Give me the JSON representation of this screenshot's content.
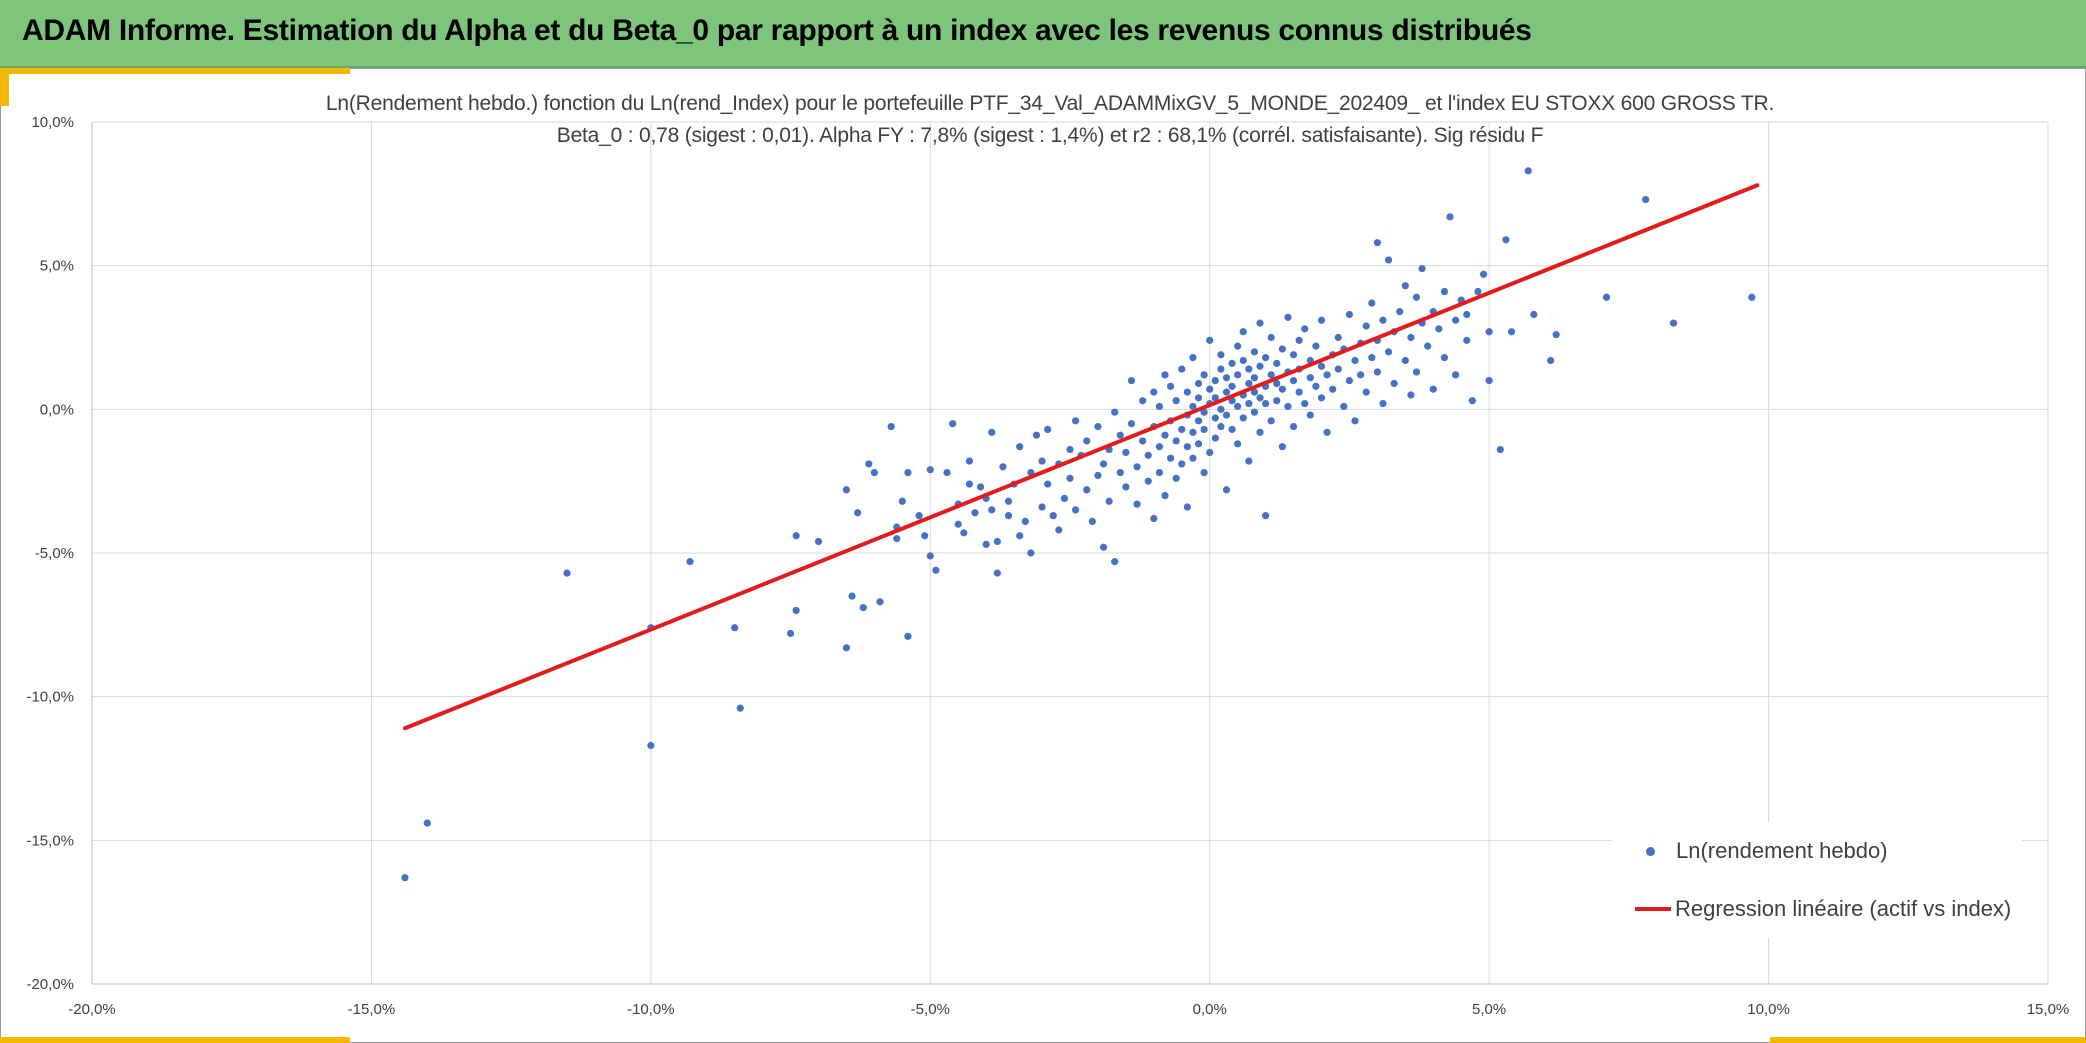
{
  "header": {
    "title": "ADAM Informe. Estimation du Alpha et du Beta_0 par rapport à un index avec les revenus connus distribués"
  },
  "colors": {
    "header_bg": "#7dc57b",
    "accent": "#f2b900",
    "points": "#4472c4",
    "regression": "#e31b1b",
    "grid": "#d9d9d9"
  },
  "chart_data": {
    "type": "scatter",
    "title_line1": "Ln(Rendement hebdo.) fonction du Ln(rend_Index) pour le portefeuille PTF_34_Val_ADAMMixGV_5_MONDE_202409_ et l'index EU STOXX 600 GROSS TR.",
    "title_line2": "Beta_0 : 0,78 (sigest : 0,01). Alpha FY : 7,8% (sigest : 1,4%) et r2 : 68,1% (corrél. satisfaisante). Sig résidu F",
    "xlabel": "",
    "ylabel": "",
    "xlim": [
      -0.2,
      0.15
    ],
    "ylim": [
      -0.2,
      0.1
    ],
    "x_ticks": [
      -0.2,
      -0.15,
      -0.1,
      -0.05,
      0.0,
      0.05,
      0.1,
      0.15
    ],
    "y_ticks": [
      -0.2,
      -0.15,
      -0.1,
      -0.05,
      0.0,
      0.05,
      0.1
    ],
    "x_tick_labels": [
      "-20,0%",
      "-15,0%",
      "-10,0%",
      "-5,0%",
      "0,0%",
      "5,0%",
      "10,0%",
      "15,0%"
    ],
    "y_tick_labels": [
      "-20,0%",
      "-15,0%",
      "-10,0%",
      "-5,0%",
      "0,0%",
      "5,0%",
      "10,0%"
    ],
    "grid": true,
    "legend_position": "bottom-right",
    "series": [
      {
        "name": "Ln(rendement hebdo)",
        "kind": "scatter",
        "points": [
          [
            -0.144,
            -0.163
          ],
          [
            -0.14,
            -0.144
          ],
          [
            -0.115,
            -0.057
          ],
          [
            -0.1,
            -0.117
          ],
          [
            -0.1,
            -0.076
          ],
          [
            -0.093,
            -0.053
          ],
          [
            -0.085,
            -0.076
          ],
          [
            -0.084,
            -0.104
          ],
          [
            -0.075,
            -0.078
          ],
          [
            -0.074,
            -0.07
          ],
          [
            -0.074,
            -0.044
          ],
          [
            -0.07,
            -0.046
          ],
          [
            -0.065,
            -0.028
          ],
          [
            -0.065,
            -0.083
          ],
          [
            -0.064,
            -0.065
          ],
          [
            -0.063,
            -0.036
          ],
          [
            -0.062,
            -0.069
          ],
          [
            -0.061,
            -0.019
          ],
          [
            -0.06,
            -0.022
          ],
          [
            -0.059,
            -0.067
          ],
          [
            -0.057,
            -0.006
          ],
          [
            -0.056,
            -0.045
          ],
          [
            -0.056,
            -0.041
          ],
          [
            -0.055,
            -0.032
          ],
          [
            -0.054,
            -0.022
          ],
          [
            -0.054,
            -0.079
          ],
          [
            -0.052,
            -0.037
          ],
          [
            -0.051,
            -0.044
          ],
          [
            -0.05,
            -0.021
          ],
          [
            -0.05,
            -0.051
          ],
          [
            -0.049,
            -0.056
          ],
          [
            -0.047,
            -0.022
          ],
          [
            -0.046,
            -0.005
          ],
          [
            -0.045,
            -0.04
          ],
          [
            -0.045,
            -0.033
          ],
          [
            -0.044,
            -0.043
          ],
          [
            -0.043,
            -0.018
          ],
          [
            -0.043,
            -0.026
          ],
          [
            -0.042,
            -0.036
          ],
          [
            -0.041,
            -0.027
          ],
          [
            -0.04,
            -0.031
          ],
          [
            -0.04,
            -0.047
          ],
          [
            -0.039,
            -0.008
          ],
          [
            -0.039,
            -0.035
          ],
          [
            -0.038,
            -0.057
          ],
          [
            -0.038,
            -0.046
          ],
          [
            -0.037,
            -0.02
          ],
          [
            -0.036,
            -0.037
          ],
          [
            -0.036,
            -0.032
          ],
          [
            -0.035,
            -0.026
          ],
          [
            -0.034,
            -0.044
          ],
          [
            -0.034,
            -0.013
          ],
          [
            -0.033,
            -0.039
          ],
          [
            -0.032,
            -0.022
          ],
          [
            -0.032,
            -0.05
          ],
          [
            -0.031,
            -0.009
          ],
          [
            -0.03,
            -0.034
          ],
          [
            -0.03,
            -0.018
          ],
          [
            -0.029,
            -0.026
          ],
          [
            -0.029,
            -0.007
          ],
          [
            -0.028,
            -0.037
          ],
          [
            -0.027,
            -0.019
          ],
          [
            -0.027,
            -0.042
          ],
          [
            -0.026,
            -0.031
          ],
          [
            -0.025,
            -0.014
          ],
          [
            -0.025,
            -0.024
          ],
          [
            -0.024,
            -0.004
          ],
          [
            -0.024,
            -0.035
          ],
          [
            -0.023,
            -0.016
          ],
          [
            -0.022,
            -0.028
          ],
          [
            -0.022,
            -0.011
          ],
          [
            -0.021,
            -0.039
          ],
          [
            -0.02,
            -0.023
          ],
          [
            -0.02,
            -0.006
          ],
          [
            -0.019,
            -0.048
          ],
          [
            -0.019,
            -0.019
          ],
          [
            -0.018,
            -0.014
          ],
          [
            -0.018,
            -0.032
          ],
          [
            -0.017,
            -0.001
          ],
          [
            -0.017,
            -0.053
          ],
          [
            -0.016,
            -0.022
          ],
          [
            -0.016,
            -0.009
          ],
          [
            -0.015,
            -0.027
          ],
          [
            -0.015,
            -0.015
          ],
          [
            -0.014,
            -0.005
          ],
          [
            -0.014,
            0.01
          ],
          [
            -0.013,
            -0.02
          ],
          [
            -0.013,
            -0.033
          ],
          [
            -0.012,
            -0.011
          ],
          [
            -0.012,
            0.003
          ],
          [
            -0.011,
            -0.025
          ],
          [
            -0.011,
            -0.016
          ],
          [
            -0.01,
            -0.006
          ],
          [
            -0.01,
            0.006
          ],
          [
            -0.01,
            -0.038
          ],
          [
            -0.009,
            -0.013
          ],
          [
            -0.009,
            -0.022
          ],
          [
            -0.009,
            0.001
          ],
          [
            -0.008,
            -0.009
          ],
          [
            -0.008,
            -0.03
          ],
          [
            -0.008,
            0.012
          ],
          [
            -0.007,
            -0.017
          ],
          [
            -0.007,
            -0.004
          ],
          [
            -0.007,
            0.008
          ],
          [
            -0.006,
            -0.011
          ],
          [
            -0.006,
            -0.024
          ],
          [
            -0.006,
            0.003
          ],
          [
            -0.005,
            -0.007
          ],
          [
            -0.005,
            -0.019
          ],
          [
            -0.005,
            0.014
          ],
          [
            -0.004,
            -0.002
          ],
          [
            -0.004,
            -0.013
          ],
          [
            -0.004,
            0.006
          ],
          [
            -0.004,
            -0.034
          ],
          [
            -0.003,
            -0.008
          ],
          [
            -0.003,
            0.001
          ],
          [
            -0.003,
            -0.017
          ],
          [
            -0.003,
            0.018
          ],
          [
            -0.002,
            -0.004
          ],
          [
            -0.002,
            0.009
          ],
          [
            -0.002,
            -0.012
          ],
          [
            -0.002,
            0.004
          ],
          [
            -0.001,
            -0.001
          ],
          [
            -0.001,
            -0.022
          ],
          [
            -0.001,
            0.012
          ],
          [
            -0.001,
            -0.007
          ],
          [
            0.0,
            0.002
          ],
          [
            0.0,
            -0.015
          ],
          [
            0.0,
            0.007
          ],
          [
            0.0,
            0.024
          ],
          [
            0.001,
            -0.003
          ],
          [
            0.001,
            0.01
          ],
          [
            0.001,
            -0.01
          ],
          [
            0.001,
            0.004
          ],
          [
            0.002,
            0.0
          ],
          [
            0.002,
            0.014
          ],
          [
            0.002,
            -0.006
          ],
          [
            0.002,
            0.019
          ],
          [
            0.003,
            0.006
          ],
          [
            0.003,
            -0.002
          ],
          [
            0.003,
            0.011
          ],
          [
            0.003,
            -0.028
          ],
          [
            0.004,
            0.003
          ],
          [
            0.004,
            0.016
          ],
          [
            0.004,
            -0.007
          ],
          [
            0.004,
            0.008
          ],
          [
            0.005,
            0.001
          ],
          [
            0.005,
            0.022
          ],
          [
            0.005,
            0.012
          ],
          [
            0.005,
            -0.012
          ],
          [
            0.006,
            0.005
          ],
          [
            0.006,
            0.017
          ],
          [
            0.006,
            -0.003
          ],
          [
            0.006,
            0.027
          ],
          [
            0.007,
            0.009
          ],
          [
            0.007,
            0.002
          ],
          [
            0.007,
            0.014
          ],
          [
            0.007,
            -0.018
          ],
          [
            0.008,
            0.006
          ],
          [
            0.008,
            0.02
          ],
          [
            0.008,
            -0.001
          ],
          [
            0.008,
            0.011
          ],
          [
            0.009,
            0.004
          ],
          [
            0.009,
            0.03
          ],
          [
            0.009,
            0.015
          ],
          [
            0.009,
            -0.008
          ],
          [
            0.01,
            0.008
          ],
          [
            0.01,
            0.018
          ],
          [
            0.01,
            -0.037
          ],
          [
            0.01,
            0.002
          ],
          [
            0.011,
            0.012
          ],
          [
            0.011,
            0.025
          ],
          [
            0.011,
            -0.004
          ],
          [
            0.012,
            0.009
          ],
          [
            0.012,
            0.016
          ],
          [
            0.012,
            0.003
          ],
          [
            0.013,
            0.021
          ],
          [
            0.013,
            0.007
          ],
          [
            0.013,
            -0.013
          ],
          [
            0.014,
            0.013
          ],
          [
            0.014,
            0.032
          ],
          [
            0.014,
            0.001
          ],
          [
            0.015,
            0.01
          ],
          [
            0.015,
            0.019
          ],
          [
            0.015,
            -0.006
          ],
          [
            0.016,
            0.006
          ],
          [
            0.016,
            0.024
          ],
          [
            0.016,
            0.014
          ],
          [
            0.017,
            0.002
          ],
          [
            0.017,
            0.028
          ],
          [
            0.018,
            0.011
          ],
          [
            0.018,
            0.017
          ],
          [
            0.018,
            -0.002
          ],
          [
            0.019,
            0.008
          ],
          [
            0.019,
            0.022
          ],
          [
            0.02,
            0.015
          ],
          [
            0.02,
            0.004
          ],
          [
            0.02,
            0.031
          ],
          [
            0.021,
            0.012
          ],
          [
            0.021,
            -0.008
          ],
          [
            0.022,
            0.019
          ],
          [
            0.022,
            0.007
          ],
          [
            0.023,
            0.025
          ],
          [
            0.023,
            0.014
          ],
          [
            0.024,
            0.001
          ],
          [
            0.024,
            0.021
          ],
          [
            0.025,
            0.01
          ],
          [
            0.025,
            0.033
          ],
          [
            0.026,
            0.017
          ],
          [
            0.026,
            -0.004
          ],
          [
            0.027,
            0.023
          ],
          [
            0.027,
            0.012
          ],
          [
            0.028,
            0.029
          ],
          [
            0.028,
            0.006
          ],
          [
            0.029,
            0.018
          ],
          [
            0.029,
            0.037
          ],
          [
            0.03,
            0.024
          ],
          [
            0.03,
            0.013
          ],
          [
            0.03,
            0.058
          ],
          [
            0.031,
            0.031
          ],
          [
            0.031,
            0.002
          ],
          [
            0.032,
            0.02
          ],
          [
            0.032,
            0.052
          ],
          [
            0.033,
            0.027
          ],
          [
            0.033,
            0.009
          ],
          [
            0.034,
            0.034
          ],
          [
            0.035,
            0.017
          ],
          [
            0.035,
            0.043
          ],
          [
            0.036,
            0.025
          ],
          [
            0.036,
            0.005
          ],
          [
            0.037,
            0.039
          ],
          [
            0.037,
            0.013
          ],
          [
            0.038,
            0.03
          ],
          [
            0.038,
            0.049
          ],
          [
            0.039,
            0.022
          ],
          [
            0.04,
            0.034
          ],
          [
            0.04,
            0.007
          ],
          [
            0.041,
            0.028
          ],
          [
            0.042,
            0.041
          ],
          [
            0.042,
            0.018
          ],
          [
            0.043,
            0.067
          ],
          [
            0.044,
            0.031
          ],
          [
            0.044,
            0.012
          ],
          [
            0.045,
            0.038
          ],
          [
            0.046,
            0.033
          ],
          [
            0.046,
            0.024
          ],
          [
            0.047,
            0.003
          ],
          [
            0.048,
            0.041
          ],
          [
            0.049,
            0.047
          ],
          [
            0.05,
            0.01
          ],
          [
            0.05,
            0.027
          ],
          [
            0.052,
            -0.014
          ],
          [
            0.053,
            0.059
          ],
          [
            0.054,
            0.027
          ],
          [
            0.057,
            0.083
          ],
          [
            0.058,
            0.033
          ],
          [
            0.061,
            0.017
          ],
          [
            0.062,
            0.026
          ],
          [
            0.071,
            0.039
          ],
          [
            0.078,
            0.073
          ],
          [
            0.083,
            0.03
          ],
          [
            0.097,
            0.039
          ]
        ]
      },
      {
        "name": "Regression linéaire (actif vs index)",
        "kind": "line",
        "points": [
          [
            -0.144,
            -0.111
          ],
          [
            0.098,
            0.078
          ]
        ]
      }
    ]
  }
}
